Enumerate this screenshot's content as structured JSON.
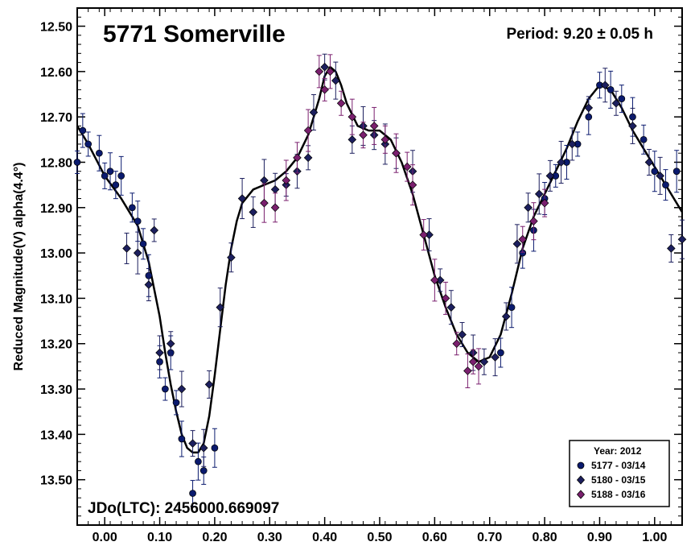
{
  "chart_data": {
    "type": "scatter",
    "title": "5771 Somerville",
    "period_text": "Period: 9.20 ± 0.05 h",
    "jdo_text": "JDo(LTC): 2456000.669097",
    "xlabel": "",
    "ylabel": "Reduced Magnitude(V) alpha(4.4°)",
    "xlim": [
      -0.05,
      1.05
    ],
    "ylim": [
      13.6,
      12.46
    ],
    "y_inverted": true,
    "x_ticks": [
      "0.00",
      "0.10",
      "0.20",
      "0.30",
      "0.40",
      "0.50",
      "0.60",
      "0.70",
      "0.80",
      "0.90",
      "1.00"
    ],
    "y_ticks": [
      "12.50",
      "12.60",
      "12.70",
      "12.80",
      "12.90",
      "13.00",
      "13.10",
      "13.20",
      "13.30",
      "13.40",
      "13.50"
    ],
    "grid": false,
    "legend": {
      "title": "Year: 2012",
      "placement": "bottom-right",
      "entries": [
        "5177 - 03/14",
        "5180 - 03/15",
        "5188 - 03/16"
      ]
    },
    "colors": {
      "s1": "#0a1a6e",
      "s2": "#1c1f5e",
      "s3": "#7a1f6e",
      "fit": "#000000"
    },
    "series": [
      {
        "name": "5177 - 03/14",
        "marker": "circle",
        "x": [
          -0.05,
          -0.04,
          -0.03,
          -0.01,
          0.0,
          0.01,
          0.02,
          0.03,
          0.05,
          0.06,
          0.07,
          0.08,
          0.1,
          0.11,
          0.12,
          0.13,
          0.14,
          0.16,
          0.17,
          0.18,
          0.2,
          0.72,
          0.74,
          0.76,
          0.78,
          0.8,
          0.82,
          0.84,
          0.86,
          0.88,
          0.9,
          0.92,
          0.94,
          0.96,
          0.98,
          1.0,
          1.02,
          1.04
        ],
        "y": [
          12.8,
          12.73,
          12.76,
          12.78,
          12.83,
          12.82,
          12.85,
          12.83,
          12.9,
          12.93,
          12.98,
          13.05,
          13.24,
          13.3,
          13.22,
          13.33,
          13.41,
          13.53,
          13.46,
          13.48,
          13.43,
          13.22,
          13.12,
          13.0,
          12.95,
          12.88,
          12.83,
          12.8,
          12.76,
          12.7,
          12.63,
          12.64,
          12.66,
          12.7,
          12.75,
          12.82,
          12.85,
          12.82
        ]
      },
      {
        "name": "5180 - 03/15",
        "marker": "diamond",
        "x": [
          0.04,
          0.06,
          0.08,
          0.09,
          0.1,
          0.12,
          0.14,
          0.16,
          0.18,
          0.19,
          0.21,
          0.23,
          0.25,
          0.27,
          0.29,
          0.31,
          0.33,
          0.35,
          0.37,
          0.38,
          0.4,
          0.42,
          0.45,
          0.47,
          0.49,
          0.51,
          0.53,
          0.56,
          0.59,
          0.61,
          0.63,
          0.65,
          0.67,
          0.69,
          0.71,
          0.73,
          0.75,
          0.77,
          0.79,
          0.81,
          0.83,
          0.85,
          0.88,
          0.91,
          0.93,
          0.96,
          0.99,
          1.01,
          1.03,
          1.05
        ],
        "y": [
          12.99,
          13.0,
          13.07,
          12.95,
          13.22,
          13.2,
          13.3,
          13.42,
          13.43,
          13.29,
          13.12,
          13.01,
          12.88,
          12.91,
          12.84,
          12.86,
          12.85,
          12.82,
          12.79,
          12.69,
          12.59,
          12.62,
          12.75,
          12.72,
          12.74,
          12.76,
          12.78,
          12.82,
          12.96,
          13.06,
          13.12,
          13.18,
          13.22,
          13.24,
          13.23,
          13.14,
          12.98,
          12.9,
          12.87,
          12.83,
          12.8,
          12.76,
          12.68,
          12.63,
          12.67,
          12.72,
          12.8,
          12.83,
          12.99,
          12.97
        ]
      },
      {
        "name": "5188 - 03/16",
        "marker": "diamond",
        "x": [
          0.29,
          0.31,
          0.33,
          0.35,
          0.37,
          0.39,
          0.4,
          0.41,
          0.43,
          0.45,
          0.47,
          0.49,
          0.51,
          0.53,
          0.55,
          0.56,
          0.58,
          0.6,
          0.62,
          0.64,
          0.66,
          0.67,
          0.68,
          0.76,
          0.78,
          0.8
        ],
        "y": [
          12.89,
          12.9,
          12.84,
          12.79,
          12.73,
          12.6,
          12.64,
          12.6,
          12.67,
          12.7,
          12.74,
          12.72,
          12.75,
          12.78,
          12.81,
          12.85,
          12.96,
          13.06,
          13.1,
          13.2,
          13.26,
          13.24,
          13.25,
          12.97,
          12.93,
          12.89
        ]
      }
    ],
    "fit_curve": {
      "x": [
        -0.05,
        -0.03,
        0.0,
        0.03,
        0.06,
        0.08,
        0.1,
        0.11,
        0.12,
        0.13,
        0.14,
        0.15,
        0.16,
        0.17,
        0.18,
        0.19,
        0.2,
        0.21,
        0.22,
        0.23,
        0.24,
        0.25,
        0.27,
        0.29,
        0.31,
        0.33,
        0.35,
        0.37,
        0.38,
        0.39,
        0.4,
        0.41,
        0.42,
        0.43,
        0.44,
        0.46,
        0.48,
        0.5,
        0.52,
        0.54,
        0.56,
        0.58,
        0.6,
        0.62,
        0.64,
        0.66,
        0.68,
        0.7,
        0.72,
        0.74,
        0.76,
        0.78,
        0.8,
        0.82,
        0.84,
        0.86,
        0.88,
        0.9,
        0.92,
        0.94,
        0.96,
        0.98,
        1.0,
        1.02,
        1.05
      ],
      "y": [
        12.72,
        12.76,
        12.83,
        12.88,
        12.94,
        13.02,
        13.14,
        13.22,
        13.29,
        13.35,
        13.4,
        13.43,
        13.44,
        13.44,
        13.42,
        13.36,
        13.27,
        13.17,
        13.07,
        12.99,
        12.93,
        12.89,
        12.86,
        12.85,
        12.84,
        12.82,
        12.79,
        12.74,
        12.7,
        12.66,
        12.61,
        12.59,
        12.6,
        12.63,
        12.67,
        12.72,
        12.73,
        12.73,
        12.75,
        12.8,
        12.87,
        12.96,
        13.05,
        13.12,
        13.18,
        13.22,
        13.24,
        13.23,
        13.18,
        13.09,
        12.99,
        12.92,
        12.87,
        12.82,
        12.77,
        12.71,
        12.66,
        12.63,
        12.64,
        12.68,
        12.73,
        12.77,
        12.81,
        12.85,
        12.91
      ]
    }
  }
}
